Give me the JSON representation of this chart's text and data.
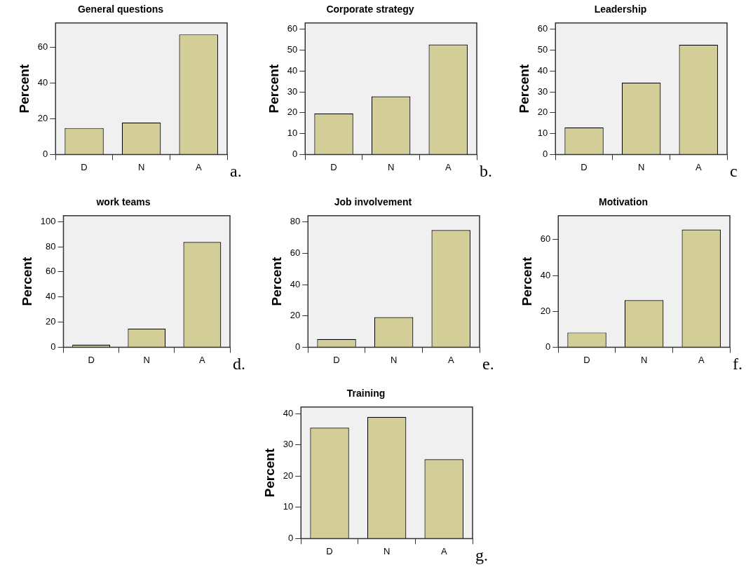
{
  "chart_data": [
    {
      "type": "bar",
      "title": "General questions",
      "ylabel": "Percent",
      "categories": [
        "D",
        "N",
        "A"
      ],
      "values": [
        14.8,
        17.9,
        67.1
      ],
      "color": "#d3ce97",
      "ylim": [
        0,
        73.5
      ],
      "yticks": [
        0,
        20,
        40,
        60
      ],
      "grid": false,
      "legend": false,
      "annotations": [
        "a."
      ]
    },
    {
      "type": "bar",
      "title": "Corporate strategy",
      "ylabel": "Percent",
      "categories": [
        "D",
        "N",
        "A"
      ],
      "values": [
        19.6,
        27.8,
        52.7
      ],
      "color": "#d3ce97",
      "ylim": [
        0,
        63
      ],
      "yticks": [
        0,
        10,
        20,
        30,
        40,
        50,
        60
      ],
      "grid": false,
      "legend": false,
      "annotations": [
        "b."
      ]
    },
    {
      "type": "bar",
      "title": "Leadership",
      "ylabel": "Percent",
      "categories": [
        "D",
        "N",
        "A"
      ],
      "values": [
        13.0,
        34.4,
        52.6
      ],
      "color": "#d3ce97",
      "ylim": [
        0,
        63
      ],
      "yticks": [
        0,
        10,
        20,
        30,
        40,
        50,
        60
      ],
      "grid": false,
      "legend": false,
      "annotations": [
        "c"
      ]
    },
    {
      "type": "bar",
      "title": "work teams",
      "ylabel": "Percent",
      "categories": [
        "D",
        "N",
        "A"
      ],
      "values": [
        2.0,
        14.8,
        83.8
      ],
      "color": "#d3ce97",
      "ylim": [
        0,
        104.7
      ],
      "yticks": [
        0,
        20,
        40,
        60,
        80,
        100
      ],
      "grid": false,
      "legend": false,
      "annotations": [
        "d."
      ]
    },
    {
      "type": "bar",
      "title": "Job involvement",
      "ylabel": "Percent",
      "categories": [
        "D",
        "N",
        "A"
      ],
      "values": [
        5.2,
        19.2,
        74.8
      ],
      "color": "#d3ce97",
      "ylim": [
        0,
        84
      ],
      "yticks": [
        0,
        20,
        40,
        60,
        80
      ],
      "grid": false,
      "legend": false,
      "annotations": [
        "e."
      ]
    },
    {
      "type": "bar",
      "title": "Motivation",
      "ylabel": "Percent",
      "categories": [
        "D",
        "N",
        "A"
      ],
      "values": [
        8.2,
        26.2,
        65.6
      ],
      "color": "#d3ce97",
      "ylim": [
        0,
        73.3
      ],
      "yticks": [
        0,
        20,
        40,
        60
      ],
      "grid": false,
      "legend": false,
      "annotations": [
        "f."
      ]
    },
    {
      "type": "bar",
      "title": "Training",
      "ylabel": "Percent",
      "categories": [
        "D",
        "N",
        "A"
      ],
      "values": [
        35.5,
        38.9,
        25.4
      ],
      "color": "#d3ce97",
      "ylim": [
        0,
        42.1
      ],
      "yticks": [
        0,
        10,
        20,
        30,
        40
      ],
      "grid": false,
      "legend": false,
      "annotations": [
        "g."
      ]
    }
  ]
}
